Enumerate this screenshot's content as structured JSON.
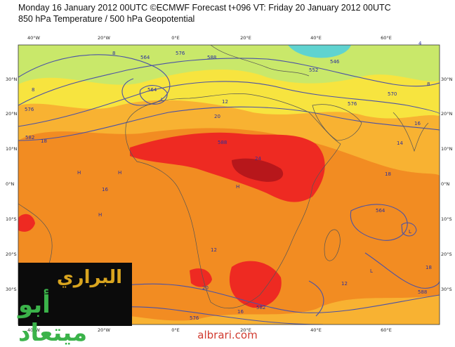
{
  "header": {
    "line1": "Monday 16 January 2012 00UTC ©ECMWF Forecast t+096 VT: Friday 20 January 2012 00UTC",
    "line2": "850 hPa Temperature / 500 hPa Geopotential"
  },
  "map": {
    "lon_ticks": [
      "40°W",
      "20°W",
      "0°E",
      "20°E",
      "40°E",
      "60°E"
    ],
    "lat_ticks": [
      "30°N",
      "20°N",
      "10°N",
      "0°N",
      "10°S",
      "20°S",
      "30°S"
    ],
    "colors": {
      "green": "#c9e86a",
      "yellow": "#f7e43f",
      "light_orange": "#f8b232",
      "orange": "#f28c22",
      "red": "#ee2a22",
      "dark_red": "#b7171b",
      "cyan": "#5fd3d0",
      "contour": "#4b52a6"
    },
    "contour_labels": [
      "564",
      "576",
      "588",
      "552",
      "546",
      "576",
      "564",
      "570",
      "576",
      "582",
      "588",
      "564",
      "576",
      "582",
      "588"
    ],
    "temperature_labels": [
      "8",
      "12",
      "18",
      "20",
      "24",
      "16",
      "14",
      "18",
      "12",
      "20",
      "16",
      "18",
      "8",
      "16",
      "12",
      "4",
      "8"
    ],
    "pressure_marks": [
      "H",
      "H",
      "H",
      "L",
      "L",
      "H",
      "L"
    ]
  },
  "logo": {
    "line1": "البراري",
    "line2": "أبو ميتعاد"
  },
  "footer": {
    "site": "albrari.com"
  }
}
